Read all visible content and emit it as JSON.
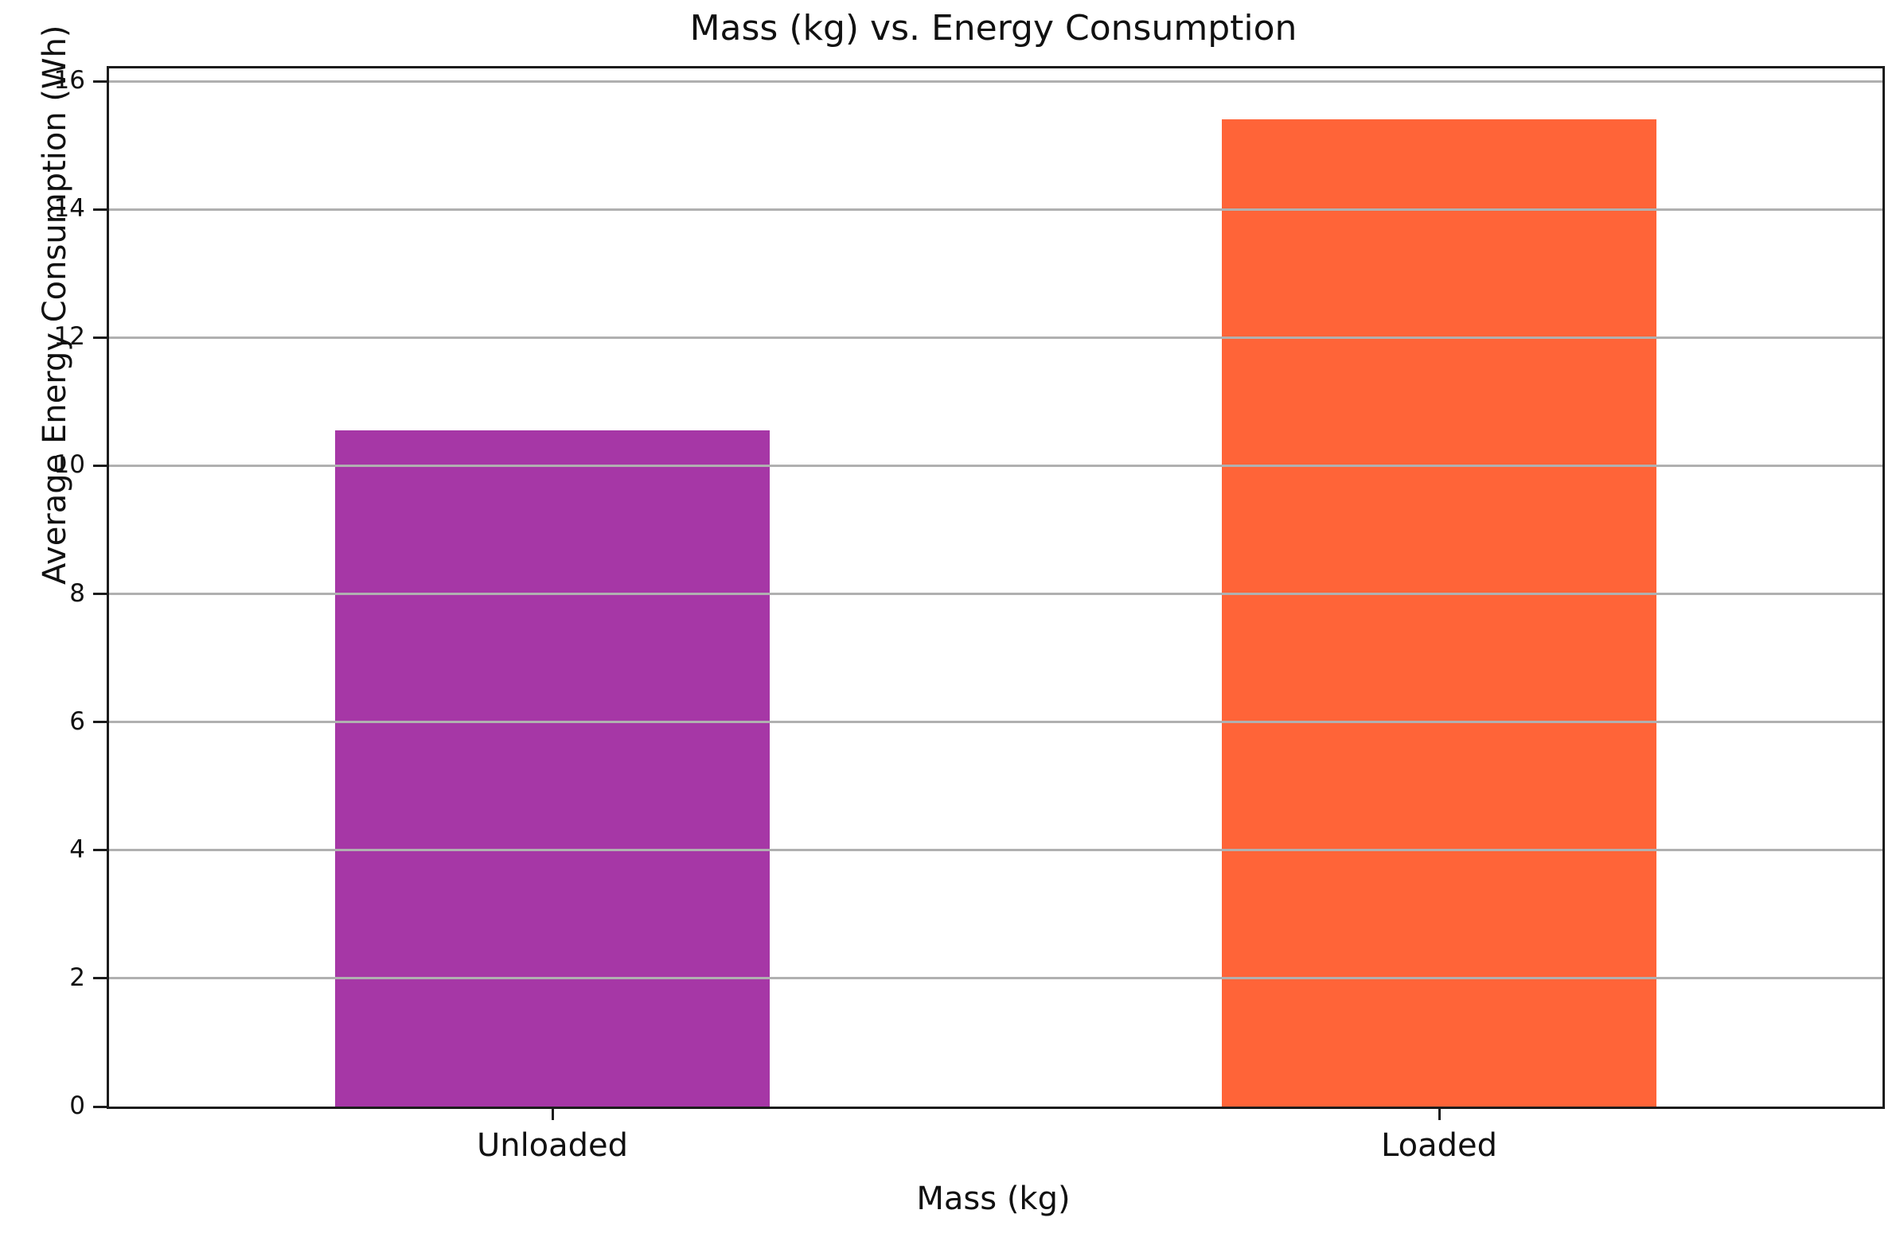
{
  "chart_data": {
    "type": "bar",
    "title": "Mass (kg) vs. Energy Consumption",
    "xlabel": "Mass (kg)",
    "ylabel": "Average Energy Consumption (Wh)",
    "categories": [
      "Unloaded",
      "Loaded"
    ],
    "values": [
      10.55,
      15.4
    ],
    "bar_colors": [
      "#a637a6",
      "#ff6438"
    ],
    "ylim": [
      0,
      16.2
    ],
    "yticks": [
      0,
      2,
      4,
      6,
      8,
      10,
      12,
      14,
      16
    ],
    "grid": "horizontal",
    "grid_color": "#b0b0b0",
    "spine_color": "#1c1c1c",
    "legend": "none",
    "bar_slot_fill": 0.49
  }
}
